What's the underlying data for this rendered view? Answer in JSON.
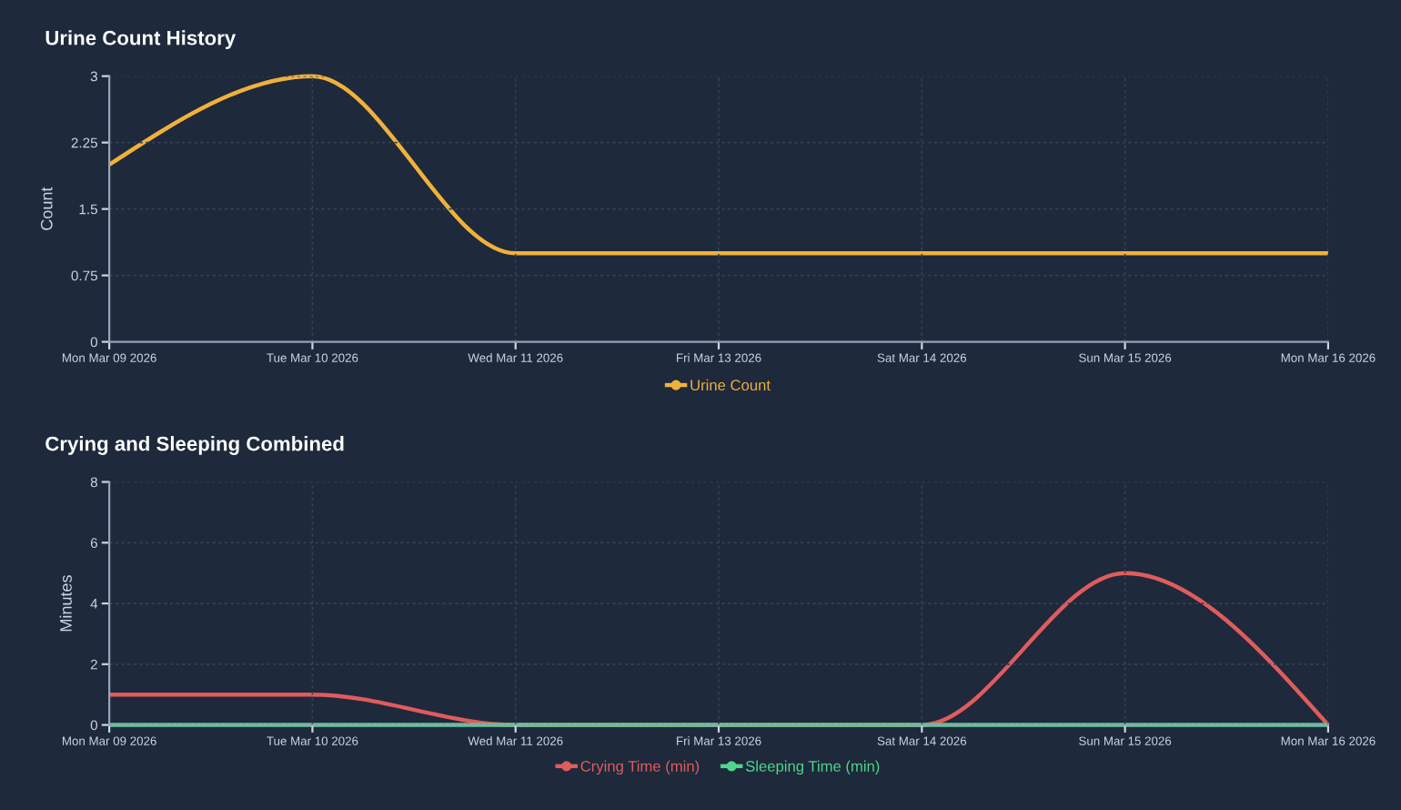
{
  "chart_data": [
    {
      "type": "line",
      "title": "Urine Count History",
      "ylabel": "Count",
      "categories": [
        "Mon Mar 09 2026",
        "Tue Mar 10 2026",
        "Wed Mar 11 2026",
        "Fri Mar 13 2026",
        "Sat Mar 14 2026",
        "Sun Mar 15 2026",
        "Mon Mar 16 2026"
      ],
      "series": [
        {
          "name": "Urine Count",
          "color": "#f0b13c",
          "values": [
            2,
            3,
            1,
            1,
            1,
            1,
            1
          ]
        }
      ],
      "ylim": [
        0,
        3
      ],
      "yticks": [
        0,
        0.75,
        1.5,
        2.25,
        3
      ],
      "grid": true,
      "legend": "bottom",
      "marker": "none",
      "line_style": "solid"
    },
    {
      "type": "line",
      "title": "Crying and Sleeping Combined",
      "ylabel": "Minutes",
      "categories": [
        "Mon Mar 09 2026",
        "Tue Mar 10 2026",
        "Wed Mar 11 2026",
        "Fri Mar 13 2026",
        "Sat Mar 14 2026",
        "Sun Mar 15 2026",
        "Mon Mar 16 2026"
      ],
      "series": [
        {
          "name": "Crying Time (min)",
          "color": "#e05c5c",
          "values": [
            1,
            1,
            0,
            0,
            0,
            5,
            0
          ]
        },
        {
          "name": "Sleeping Time (min)",
          "color": "#4fd68a",
          "values": [
            0,
            0,
            0,
            0,
            0,
            0,
            0
          ]
        }
      ],
      "ylim": [
        0,
        8
      ],
      "yticks": [
        0,
        2,
        4,
        6,
        8
      ],
      "grid": true,
      "legend": "bottom",
      "marker": "none",
      "line_style": "solid"
    }
  ]
}
